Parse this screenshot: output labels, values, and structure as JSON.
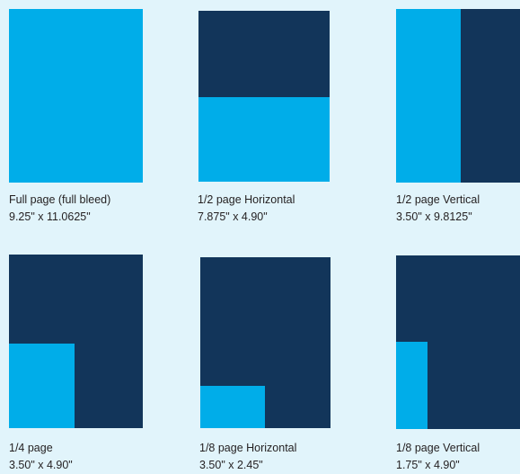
{
  "colors": {
    "background": "#e1f4fb",
    "page": "#12355a",
    "ad": "#00ade9",
    "text": "#231f20"
  },
  "ad_sizes": [
    {
      "title": "Full page (full bleed)",
      "dimensions": "9.25\" x 11.0625\""
    },
    {
      "title": "1/2 page Horizontal",
      "dimensions": "7.875\" x 4.90\""
    },
    {
      "title": "1/2 page Vertical",
      "dimensions": "3.50\" x 9.8125\""
    },
    {
      "title": "1/4 page",
      "dimensions": "3.50\" x 4.90\""
    },
    {
      "title": "1/8 page Horizontal",
      "dimensions": "3.50\" x 2.45\""
    },
    {
      "title": "1/8 page Vertical",
      "dimensions": "1.75\" x 4.90\""
    }
  ]
}
